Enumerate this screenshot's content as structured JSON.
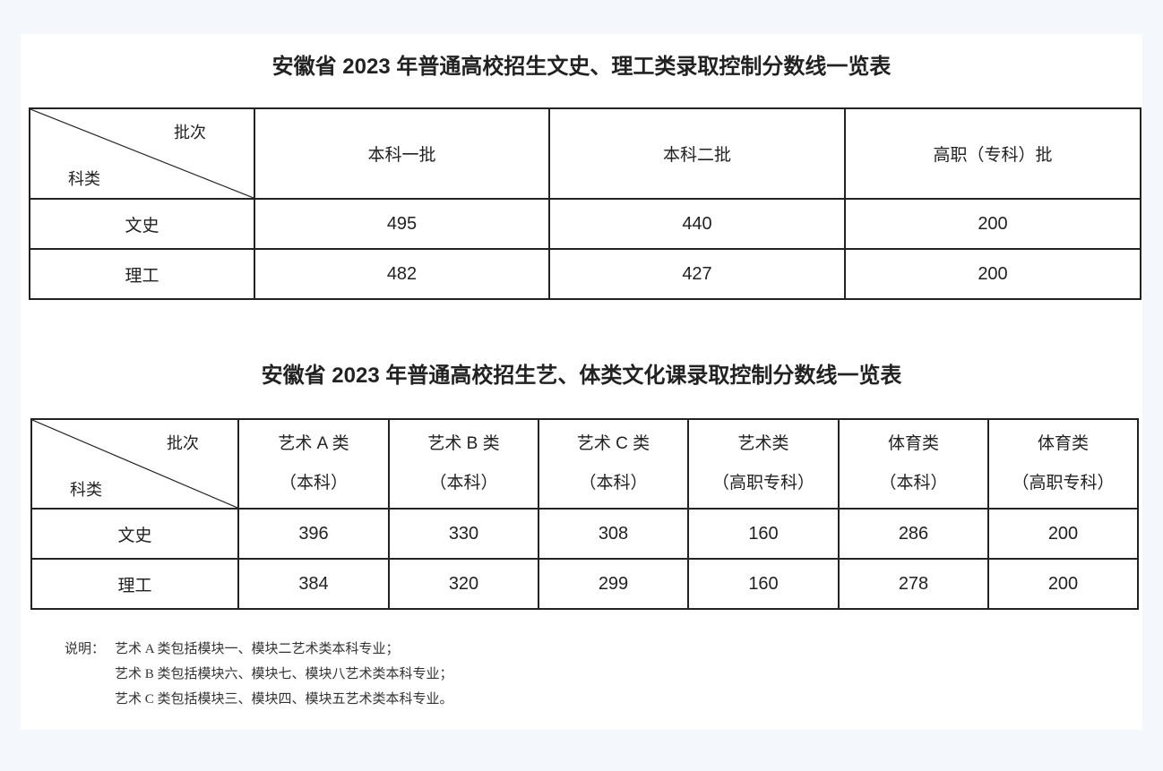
{
  "table1": {
    "title": "安徽省 2023 年普通高校招生文史、理工类录取控制分数线一览表",
    "corner_top": "批次",
    "corner_bottom": "科类",
    "headers": [
      "本科一批",
      "本科二批",
      "高职（专科）批"
    ],
    "rows": [
      {
        "label": "文史",
        "values": [
          "495",
          "440",
          "200"
        ]
      },
      {
        "label": "理工",
        "values": [
          "482",
          "427",
          "200"
        ]
      }
    ]
  },
  "table2": {
    "title": "安徽省 2023 年普通高校招生艺、体类文化课录取控制分数线一览表",
    "corner_top": "批次",
    "corner_bottom": "科类",
    "headers": [
      {
        "line1": "艺术 A 类",
        "line2": "（本科）"
      },
      {
        "line1": "艺术 B 类",
        "line2": "（本科）"
      },
      {
        "line1": "艺术 C 类",
        "line2": "（本科）"
      },
      {
        "line1": "艺术类",
        "line2": "（高职专科）"
      },
      {
        "line1": "体育类",
        "line2": "（本科）"
      },
      {
        "line1": "体育类",
        "line2": "（高职专科）"
      }
    ],
    "rows": [
      {
        "label": "文史",
        "values": [
          "396",
          "330",
          "308",
          "160",
          "286",
          "200"
        ]
      },
      {
        "label": "理工",
        "values": [
          "384",
          "320",
          "299",
          "160",
          "278",
          "200"
        ]
      }
    ]
  },
  "notes": {
    "prefix": "说明：",
    "lines": [
      "艺术 A 类包括模块一、模块二艺术类本科专业；",
      "艺术 B 类包括模块六、模块七、模块八艺术类本科专业；",
      "艺术 C 类包括模块三、模块四、模块五艺术类本科专业。"
    ]
  }
}
